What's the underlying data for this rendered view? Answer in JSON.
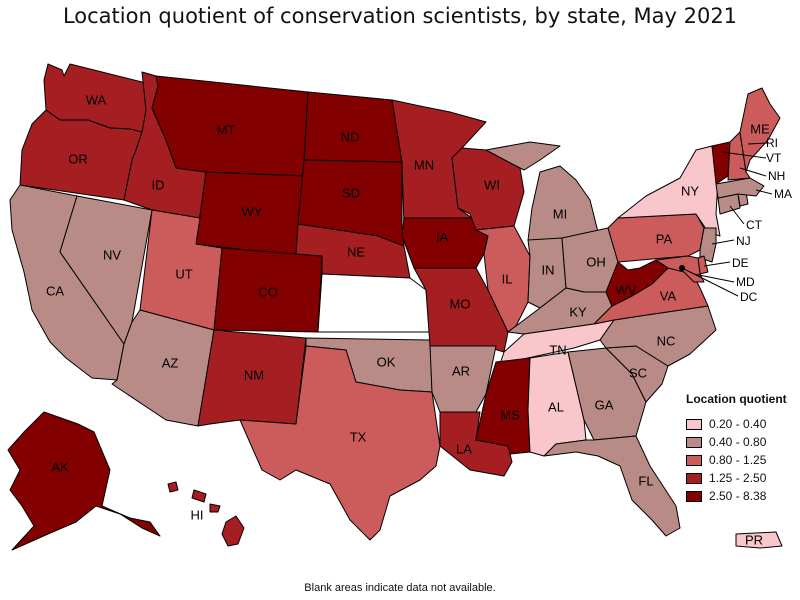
{
  "title": "Location quotient of conservation scientists, by state, May 2021",
  "footnote": "Blank areas indicate data not available.",
  "legend": {
    "title": "Location quotient",
    "items": [
      {
        "label": "0.20 - 0.40",
        "color": "#f9c6cc"
      },
      {
        "label": "0.40 - 0.80",
        "color": "#b88b87"
      },
      {
        "label": "0.80 - 1.25",
        "color": "#cc5b5c"
      },
      {
        "label": "1.25 - 2.50",
        "color": "#a51e22"
      },
      {
        "label": "2.50 - 8.38",
        "color": "#820000"
      }
    ]
  },
  "states": {
    "WA": {
      "label": "WA",
      "class": 3
    },
    "OR": {
      "label": "OR",
      "class": 3
    },
    "CA": {
      "label": "CA",
      "class": 1
    },
    "NV": {
      "label": "NV",
      "class": 1
    },
    "ID": {
      "label": "ID",
      "class": 3
    },
    "MT": {
      "label": "MT",
      "class": 4
    },
    "WY": {
      "label": "WY",
      "class": 4
    },
    "UT": {
      "label": "UT",
      "class": 2
    },
    "AZ": {
      "label": "AZ",
      "class": 1
    },
    "CO": {
      "label": "CO",
      "class": 4
    },
    "NM": {
      "label": "NM",
      "class": 3
    },
    "ND": {
      "label": "ND",
      "class": 4
    },
    "SD": {
      "label": "SD",
      "class": 4
    },
    "NE": {
      "label": "NE",
      "class": 3
    },
    "KS": {
      "label": "",
      "class": -1
    },
    "OK": {
      "label": "OK",
      "class": 1
    },
    "TX": {
      "label": "TX",
      "class": 2
    },
    "MN": {
      "label": "MN",
      "class": 3
    },
    "IA": {
      "label": "IA",
      "class": 4
    },
    "MO": {
      "label": "MO",
      "class": 3
    },
    "AR": {
      "label": "AR",
      "class": 1
    },
    "LA": {
      "label": "LA",
      "class": 3
    },
    "WI": {
      "label": "WI",
      "class": 3
    },
    "IL": {
      "label": "IL",
      "class": 2
    },
    "MI": {
      "label": "MI",
      "class": 1
    },
    "IN": {
      "label": "IN",
      "class": 1
    },
    "OH": {
      "label": "OH",
      "class": 1
    },
    "KY": {
      "label": "KY",
      "class": 1
    },
    "TN": {
      "label": "TN",
      "class": 0
    },
    "MS": {
      "label": "MS",
      "class": 4
    },
    "AL": {
      "label": "AL",
      "class": 0
    },
    "GA": {
      "label": "GA",
      "class": 1
    },
    "FL": {
      "label": "FL",
      "class": 1
    },
    "SC": {
      "label": "SC",
      "class": 1
    },
    "NC": {
      "label": "NC",
      "class": 1
    },
    "VA": {
      "label": "VA",
      "class": 2
    },
    "WV": {
      "label": "WV",
      "class": 4
    },
    "PA": {
      "label": "PA",
      "class": 2
    },
    "NY": {
      "label": "NY",
      "class": 0
    },
    "NJ": {
      "label": "NJ",
      "class": 1
    },
    "DE": {
      "label": "DE",
      "class": 2
    },
    "MD": {
      "label": "MD",
      "class": 2
    },
    "DC": {
      "label": "DC",
      "class": 4
    },
    "CT": {
      "label": "CT",
      "class": 1
    },
    "RI": {
      "label": "RI",
      "class": 1
    },
    "MA": {
      "label": "MA",
      "class": 1
    },
    "VT": {
      "label": "VT",
      "class": 4
    },
    "NH": {
      "label": "NH",
      "class": 2
    },
    "ME": {
      "label": "ME",
      "class": 2
    },
    "AK": {
      "label": "AK",
      "class": 4
    },
    "HI": {
      "label": "HI",
      "class": 3
    },
    "PR": {
      "label": "PR",
      "class": 0
    }
  }
}
